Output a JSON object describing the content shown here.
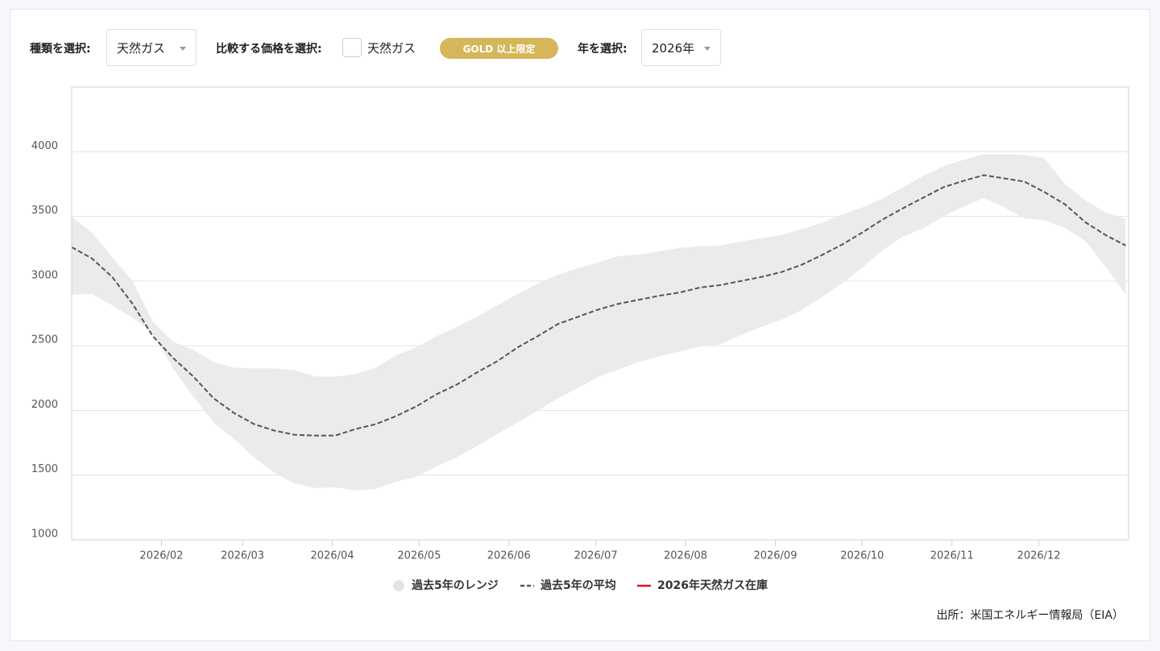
{
  "controls": {
    "type_label": "種類を選択:",
    "type_value": "天然ガス",
    "compare_label": "比較する価格を選択:",
    "compare_option": "天然ガス",
    "badge": "GOLD 以上限定",
    "year_label": "年を選択:",
    "year_value": "2026年"
  },
  "chart_data": {
    "type": "line",
    "x": [
      0,
      7,
      14,
      21,
      28,
      35,
      42,
      49,
      56,
      63,
      70,
      77,
      84,
      91,
      98,
      105,
      112,
      119,
      126,
      133,
      140,
      147,
      154,
      161,
      168,
      175,
      182,
      189,
      196,
      203,
      210,
      217,
      224,
      231,
      238,
      245,
      252,
      259,
      266,
      273,
      280,
      287,
      294,
      301,
      308,
      315,
      322,
      329,
      336,
      343,
      350,
      357,
      364
    ],
    "xlim": [
      0,
      365
    ],
    "xticks": [
      {
        "value": 31,
        "label": "2026/02"
      },
      {
        "value": 59,
        "label": "2026/03"
      },
      {
        "value": 90,
        "label": "2026/04"
      },
      {
        "value": 120,
        "label": "2026/05"
      },
      {
        "value": 151,
        "label": "2026/06"
      },
      {
        "value": 181,
        "label": "2026/07"
      },
      {
        "value": 212,
        "label": "2026/08"
      },
      {
        "value": 243,
        "label": "2026/09"
      },
      {
        "value": 273,
        "label": "2026/10"
      },
      {
        "value": 304,
        "label": "2026/11"
      },
      {
        "value": 334,
        "label": "2026/12"
      }
    ],
    "ylim": [
      1000,
      4500
    ],
    "yticks": [
      1000,
      1500,
      2000,
      2500,
      3000,
      3500,
      4000
    ],
    "grid": true,
    "series": [
      {
        "name": "過去5年のレンジ",
        "color": "#ebebeb",
        "high": [
          3500,
          3375,
          3187,
          3000,
          2687,
          2531,
          2469,
          2375,
          2331,
          2325,
          2325,
          2312,
          2262,
          2262,
          2281,
          2331,
          2425,
          2487,
          2575,
          2644,
          2725,
          2812,
          2900,
          2981,
          3050,
          3100,
          3144,
          3194,
          3206,
          3231,
          3256,
          3269,
          3275,
          3306,
          3331,
          3356,
          3400,
          3450,
          3512,
          3569,
          3637,
          3725,
          3812,
          3887,
          3937,
          3981,
          3981,
          3975,
          3950,
          3750,
          3625,
          3531,
          3481
        ],
        "low": [
          2894,
          2900,
          2812,
          2719,
          2594,
          2325,
          2106,
          1906,
          1781,
          1637,
          1519,
          1437,
          1400,
          1406,
          1381,
          1394,
          1450,
          1487,
          1569,
          1637,
          1725,
          1819,
          1906,
          2000,
          2094,
          2175,
          2262,
          2319,
          2375,
          2419,
          2456,
          2494,
          2512,
          2581,
          2644,
          2700,
          2775,
          2875,
          2981,
          3106,
          3237,
          3344,
          3406,
          3500,
          3575,
          3644,
          3569,
          3487,
          3469,
          3412,
          3312,
          3112,
          2894
        ]
      },
      {
        "name": "過去5年の平均",
        "color": "#555555",
        "values": [
          3262,
          3175,
          3031,
          2825,
          2575,
          2406,
          2262,
          2094,
          1981,
          1894,
          1844,
          1812,
          1806,
          1806,
          1856,
          1894,
          1956,
          2031,
          2125,
          2200,
          2294,
          2381,
          2487,
          2575,
          2669,
          2725,
          2781,
          2825,
          2856,
          2887,
          2912,
          2950,
          2969,
          3000,
          3031,
          3069,
          3125,
          3200,
          3281,
          3375,
          3475,
          3562,
          3644,
          3725,
          3775,
          3819,
          3794,
          3769,
          3687,
          3594,
          3456,
          3356,
          3275
        ]
      },
      {
        "name": "2026年天然ガス在庫",
        "color": "#e8111b",
        "values": [
          null,
          null,
          null,
          null,
          null,
          null,
          null,
          null,
          null,
          null,
          null,
          null,
          null,
          null,
          null,
          null,
          null,
          null,
          null,
          null,
          null,
          null,
          null,
          null,
          null,
          null,
          null,
          null,
          null,
          null,
          null,
          null,
          null,
          null,
          null,
          null,
          null,
          null,
          null,
          null,
          null,
          null,
          null,
          null,
          null,
          null,
          null,
          null,
          null,
          null,
          null,
          null,
          null
        ]
      }
    ]
  },
  "source": "出所：米国エネルギー情報局（EIA）"
}
